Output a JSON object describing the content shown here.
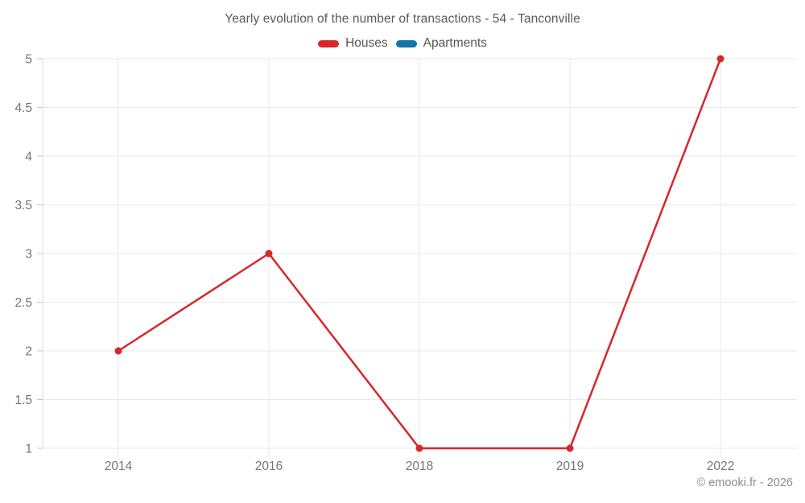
{
  "chart_data": {
    "type": "line",
    "title": "Yearly evolution of the number of transactions - 54 - Tanconville",
    "categories": [
      "2014",
      "2016",
      "2018",
      "2019",
      "2022"
    ],
    "series": [
      {
        "name": "Houses",
        "color": "#d8262c",
        "values": [
          2,
          3,
          1,
          1,
          5
        ]
      },
      {
        "name": "Apartments",
        "color": "#1274a8",
        "values": []
      }
    ],
    "ylim": [
      1,
      5
    ],
    "yticks": [
      1,
      1.5,
      2,
      2.5,
      3,
      3.5,
      4,
      4.5,
      5
    ],
    "xlabel": "",
    "ylabel": "",
    "grid": true,
    "legend_position": "top",
    "style": {
      "grid_color": "#e9e9e9",
      "axis_line_color": "#dcdcdc",
      "tick_color": "#c4c4c4",
      "axis_text_color": "#757575",
      "title_color": "#595959",
      "footer_color": "#8c8c8c"
    }
  },
  "footer": {
    "credit": "© emooki.fr - 2026"
  }
}
